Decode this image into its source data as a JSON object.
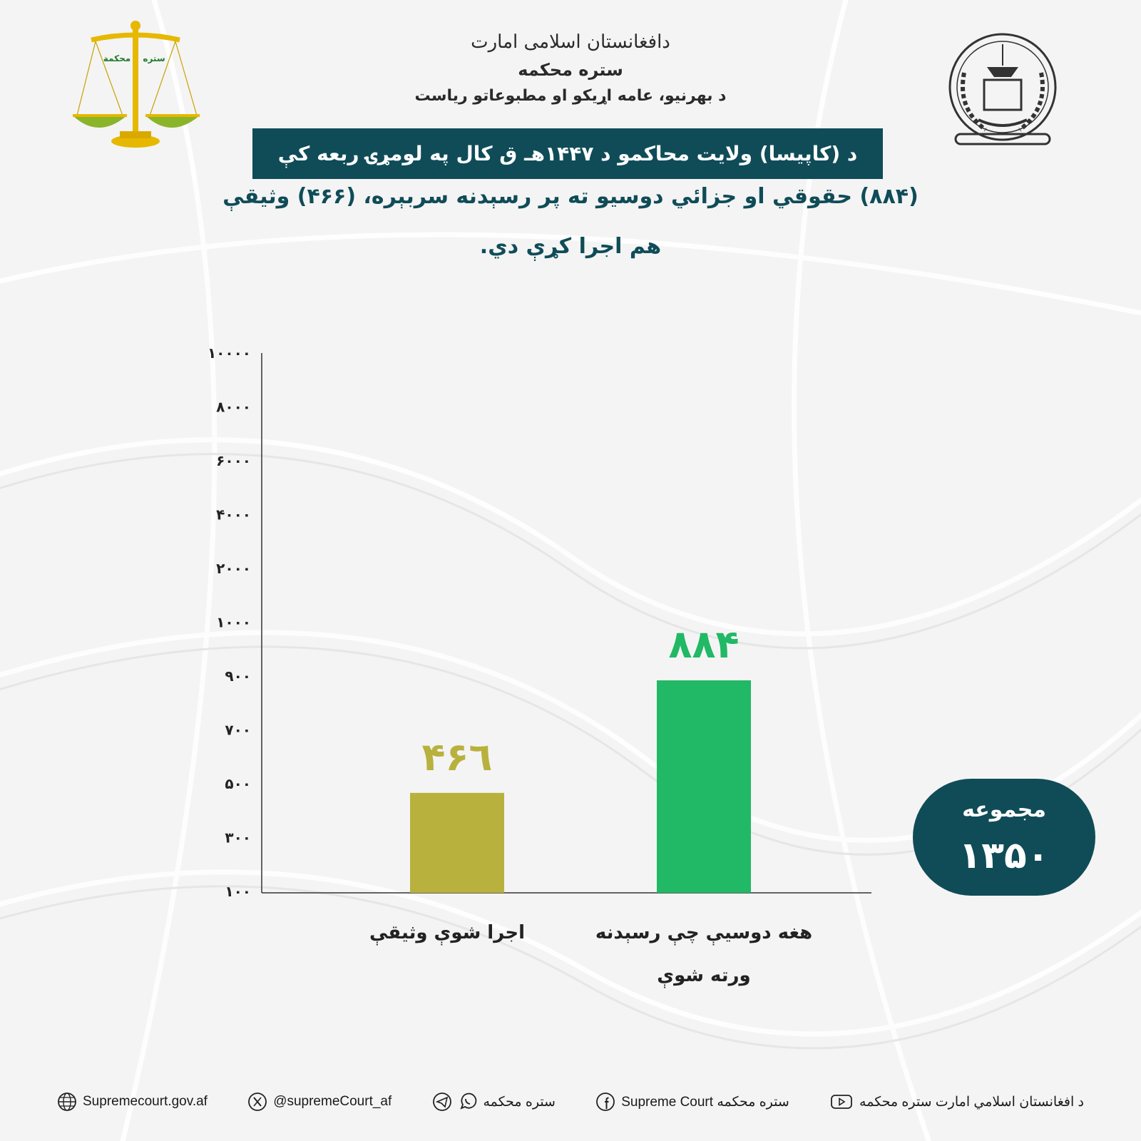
{
  "header": {
    "emirate_calligraphy": "دافغانستان اسلامی امارت",
    "court_name": "ستره محکمه",
    "department": "د بهرنيو، عامه اړيکو او مطبوعاتو رياست",
    "scale_pan_left": "محكمة",
    "scale_pan_right": "ستره"
  },
  "title_banner": "د (کاپیسا) ولایت محاکمو د ۱۴۴۷هـ ق کال په لومړۍ ربعه کې",
  "subtitle": {
    "line1": "(۸۸۴) حقوقي او جزائي دوسیو ته پر رسېدنه سربېره، (۴۶۶) وثیقې",
    "line2": "هم اجرا کړې دي."
  },
  "chart_data": {
    "type": "bar",
    "y_tick_labels": [
      "۱۰۰",
      "۳۰۰",
      "۵۰۰",
      "۷۰۰",
      "۹۰۰",
      "۱۰۰۰",
      "۲۰۰۰",
      "۴۰۰۰",
      "۶۰۰۰",
      "۸۰۰۰",
      "۱۰۰۰۰"
    ],
    "y_tick_values": [
      100,
      300,
      500,
      700,
      900,
      1000,
      2000,
      4000,
      6000,
      8000,
      10000
    ],
    "categories": [
      "اجرا شوې وثیقې",
      "هغه دوسيې چې رسېدنه ورته شوې"
    ],
    "values": [
      466,
      884
    ],
    "value_labels": [
      "۴۶٦",
      "۸۸۴"
    ],
    "bar_colors": [
      "#b8b13d",
      "#21b866"
    ],
    "grid": false,
    "legend": "none"
  },
  "total": {
    "label": "مجموعه",
    "value": "۱۳۵۰"
  },
  "footer": {
    "youtube": "د افغانستان اسلامي امارت ستره محکمه",
    "facebook": "ستره محکمه Supreme Court",
    "telegram_whatsapp": "ستره محکمه",
    "x_handle": "@supremeCourt_af",
    "website": "Supremecourt.gov.af"
  },
  "colors": {
    "teal": "#0f4c58",
    "olive": "#b8b13d",
    "green": "#21b866",
    "gold": "#e6b800"
  },
  "icons": [
    "scales-of-justice-logo",
    "emirate-emblem",
    "youtube-icon",
    "facebook-icon",
    "whatsapp-icon",
    "telegram-icon",
    "x-icon",
    "globe-icon"
  ]
}
